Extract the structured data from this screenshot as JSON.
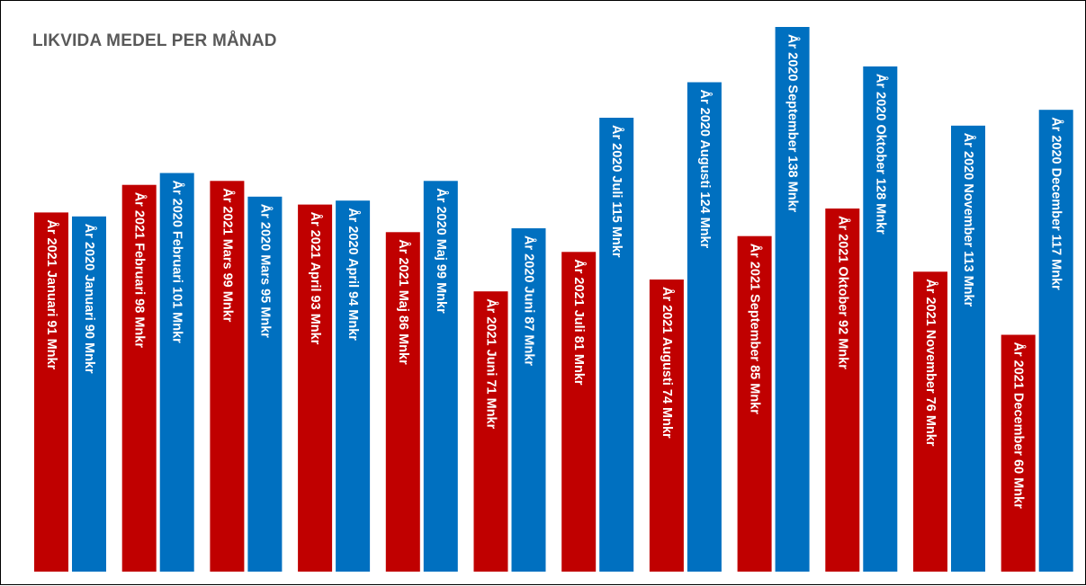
{
  "title": "LIKVIDA MEDEL PER MÅNAD",
  "colors": {
    "y2021": "#c00000",
    "y2020": "#0070c0"
  },
  "chart_data": {
    "type": "bar",
    "title": "LIKVIDA MEDEL PER MÅNAD",
    "categories": [
      "Januari",
      "Februari",
      "Mars",
      "April",
      "Maj",
      "Juni",
      "Juli",
      "Augusti",
      "September",
      "Oktober",
      "November",
      "December"
    ],
    "series": [
      {
        "name": "År 2021",
        "values": [
          91,
          98,
          99,
          93,
          86,
          71,
          81,
          74,
          85,
          92,
          76,
          60
        ]
      },
      {
        "name": "År 2020",
        "values": [
          90,
          101,
          95,
          94,
          99,
          87,
          115,
          124,
          138,
          128,
          113,
          117
        ]
      }
    ],
    "unit": "Mnkr",
    "bar_labels": [
      [
        "År 2021 Januari 91 Mnkr",
        "År 2020 Januari 90 Mnkr"
      ],
      [
        "År 2021 Februari 98 Mnkr",
        "År 2020 Februari 101 Mnkr"
      ],
      [
        "År 2021 Mars 99 Mnkr",
        "År 2020 Mars 95 Mnkr"
      ],
      [
        "År 2021 April 93 Mnkr",
        "År 2020 April 94 Mnkr"
      ],
      [
        "År 2021 Maj 86 Mnkr",
        "År 2020 Maj 99 Mnkr"
      ],
      [
        "År 2021 Juni 71 Mnkr",
        "År 2020 Juni 87 Mnkr"
      ],
      [
        "År 2021 Juli 81 Mnkr",
        "År 2020 Juli 115 Mnkr"
      ],
      [
        "År 2021 Augusti 74 Mnkr",
        "År 2020 Augusti 124 Mnkr"
      ],
      [
        "År 2021 September 85 Mnkr",
        "År 2020 September 138 Mnkr"
      ],
      [
        "År 2021 Oktober 92 Mnkr",
        "År 2020 Oktober 128 Mnkr"
      ],
      [
        "År 2021 November 76 Mnkr",
        "År 2020 November 113 Mnkr"
      ],
      [
        "År 2021 December 60 Mnkr",
        "År 2020 December 117 Mnkr"
      ]
    ],
    "xlabel": "",
    "ylabel": "",
    "ylim": [
      0,
      138
    ],
    "grid": false,
    "legend": "none"
  }
}
